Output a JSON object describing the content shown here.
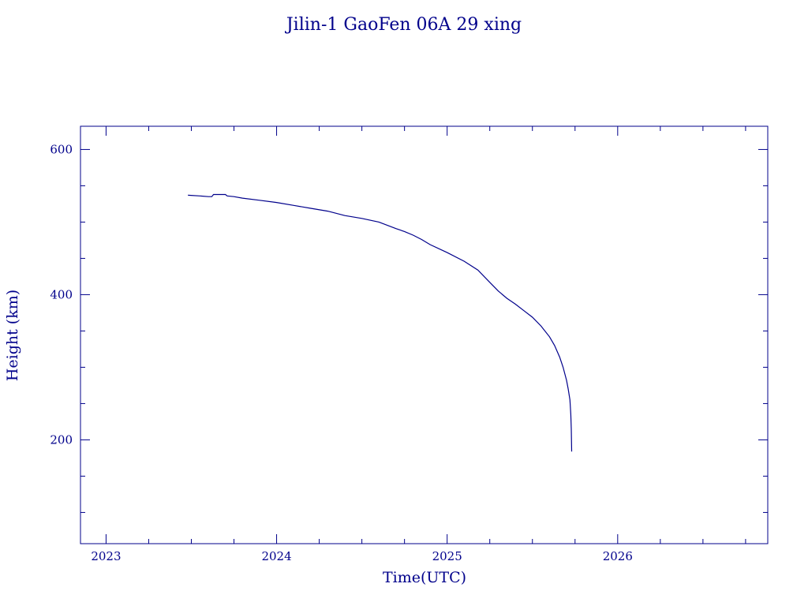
{
  "chart_data": {
    "type": "line",
    "title": "Jilin-1 GaoFen 06A 29 xing",
    "xlabel": "Time(UTC)",
    "ylabel": "Height (km)",
    "xlim": [
      2022.85,
      2026.88
    ],
    "ylim": [
      57,
      632
    ],
    "x_ticks": [
      2023,
      2024,
      2025,
      2026
    ],
    "x_tick_labels": [
      "2023",
      "2024",
      "2025",
      "2026"
    ],
    "x_minor_step": 0.25,
    "y_ticks": [
      200,
      400,
      600
    ],
    "y_tick_labels": [
      "200",
      "400",
      "600"
    ],
    "y_minor_step": 50,
    "grid": false,
    "colors": {
      "foreground": "#00008b",
      "background": "#ffffff"
    },
    "series": [
      {
        "x": [
          2023.48,
          2023.55,
          2023.6,
          2023.62,
          2023.63,
          2023.7,
          2023.71,
          2023.75,
          2023.8,
          2023.9,
          2024.0,
          2024.1,
          2024.2,
          2024.3,
          2024.4,
          2024.5,
          2024.6,
          2024.7,
          2024.75,
          2024.8,
          2024.85,
          2024.9,
          2025.0,
          2025.1,
          2025.18,
          2025.25,
          2025.3,
          2025.35,
          2025.4,
          2025.45,
          2025.5,
          2025.55,
          2025.6,
          2025.63,
          2025.66,
          2025.68,
          2025.7,
          2025.71,
          2025.72,
          2025.725,
          2025.728,
          2025.73
        ],
        "y": [
          537,
          536,
          535,
          535,
          538,
          538,
          536,
          535,
          533,
          530,
          527,
          523,
          519,
          515,
          509,
          505,
          500,
          491,
          487,
          482,
          476,
          469,
          458,
          446,
          434,
          417,
          405,
          395,
          387,
          378,
          369,
          357,
          342,
          330,
          314,
          300,
          282,
          270,
          255,
          235,
          215,
          184
        ]
      }
    ]
  }
}
